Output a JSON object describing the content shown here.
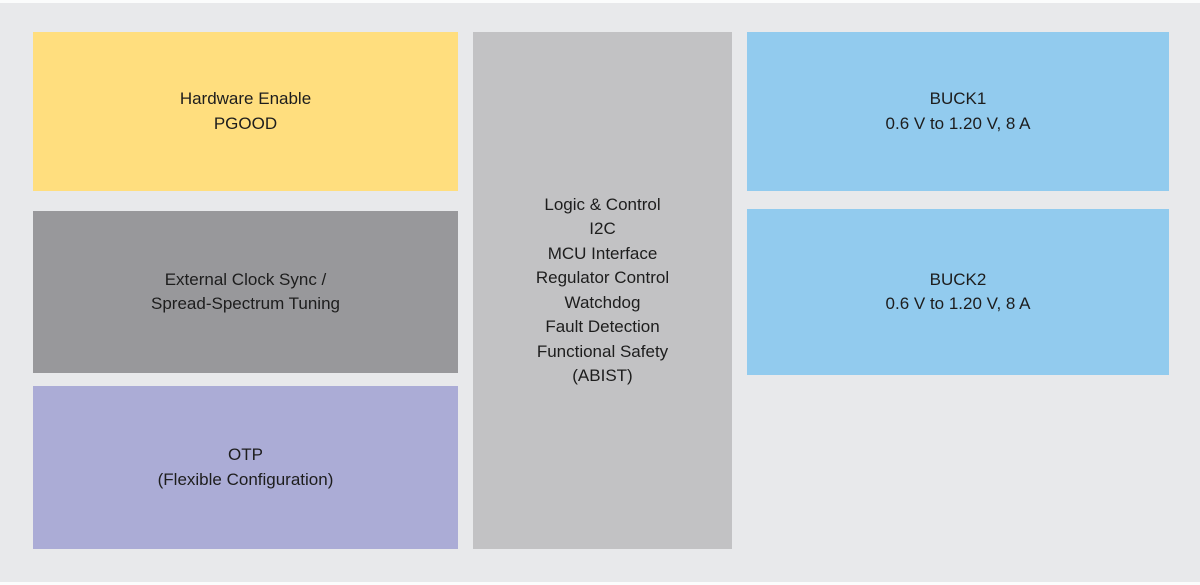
{
  "colors": {
    "background": "#e8e9eb",
    "page_edge": "#fbfcfc",
    "text": "#1d1d1d",
    "block_yellow": "#ffde7e",
    "block_dark_gray": "#98989b",
    "block_lavender": "#abacd6",
    "block_light_gray": "#c2c2c4",
    "block_blue": "#92cbee"
  },
  "diagram": {
    "blocks": [
      {
        "name": "hardware-enable",
        "color": "#ffde7e",
        "lines": [
          "Hardware Enable",
          "PGOOD"
        ]
      },
      {
        "name": "external-clock-sync",
        "color": "#98989b",
        "lines": [
          "External Clock Sync /",
          "Spread-Spectrum Tuning"
        ]
      },
      {
        "name": "otp",
        "color": "#abacd6",
        "lines": [
          "OTP",
          "(Flexible Configuration)"
        ]
      },
      {
        "name": "logic-and-control",
        "color": "#c2c2c4",
        "lines": [
          "Logic & Control",
          "I2C",
          "MCU Interface",
          "Regulator Control",
          "Watchdog",
          "Fault Detection",
          "Functional Safety",
          "(ABIST)"
        ]
      },
      {
        "name": "buck1",
        "color": "#92cbee",
        "lines": [
          "BUCK1",
          "0.6 V to 1.20 V, 8 A"
        ]
      },
      {
        "name": "buck2",
        "color": "#92cbee",
        "lines": [
          "BUCK2",
          "0.6 V to 1.20 V, 8 A"
        ]
      }
    ]
  }
}
